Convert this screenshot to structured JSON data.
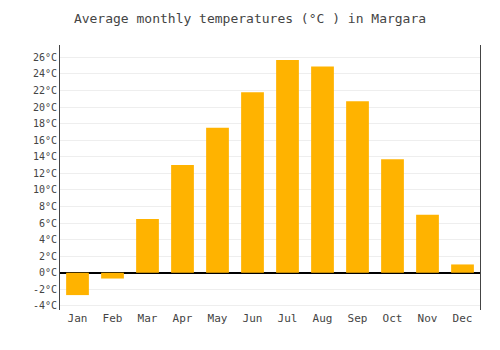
{
  "chart_data": {
    "type": "bar",
    "title": "Average monthly temperatures (°C ) in Margara",
    "categories": [
      "Jan",
      "Feb",
      "Mar",
      "Apr",
      "May",
      "Jun",
      "Jul",
      "Aug",
      "Sep",
      "Oct",
      "Nov",
      "Dec"
    ],
    "values": [
      -2.7,
      -0.7,
      6.5,
      13.0,
      17.5,
      21.8,
      25.7,
      24.9,
      20.7,
      13.7,
      7.0,
      1.0
    ],
    "color": "#FFB300",
    "ylim": [
      -4.5,
      27.5
    ],
    "yticks": [
      {
        "value": -4,
        "label": "-4°C"
      },
      {
        "value": -2,
        "label": "-2°C"
      },
      {
        "value": 0,
        "label": "0°C"
      },
      {
        "value": 2,
        "label": "2°C"
      },
      {
        "value": 4,
        "label": "4°C"
      },
      {
        "value": 6,
        "label": "6°C"
      },
      {
        "value": 8,
        "label": "8°C"
      },
      {
        "value": 10,
        "label": "10°C"
      },
      {
        "value": 12,
        "label": "12°C"
      },
      {
        "value": 14,
        "label": "14°C"
      },
      {
        "value": 16,
        "label": "16°C"
      },
      {
        "value": 18,
        "label": "18°C"
      },
      {
        "value": 20,
        "label": "20°C"
      },
      {
        "value": 22,
        "label": "22°C"
      },
      {
        "value": 24,
        "label": "24°C"
      },
      {
        "value": 26,
        "label": "26°C"
      }
    ],
    "grid": true
  }
}
